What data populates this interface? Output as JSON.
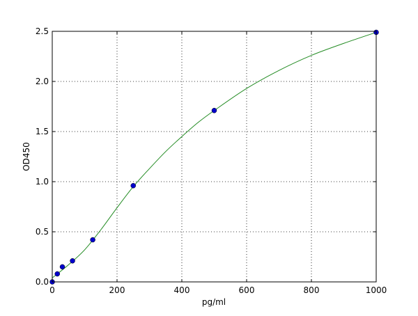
{
  "chart_data": {
    "type": "scatter",
    "title": "",
    "xlabel": "pg/ml",
    "ylabel": "OD450",
    "xlim": [
      0,
      1000
    ],
    "ylim": [
      0,
      2.5
    ],
    "xticks": [
      "0",
      "200",
      "400",
      "600",
      "800",
      "1000"
    ],
    "yticks": [
      "0.0",
      "0.5",
      "1.0",
      "1.5",
      "2.0",
      "2.5"
    ],
    "grid": true,
    "grid_style": "dotted",
    "series": [
      {
        "kind": "points",
        "color": "#0000cc",
        "x": [
          0,
          15.6,
          31.25,
          62.5,
          125,
          250,
          500,
          1000
        ],
        "y": [
          0.0,
          0.08,
          0.15,
          0.21,
          0.42,
          0.96,
          1.71,
          2.49
        ]
      },
      {
        "kind": "fit-line",
        "color": "#228b22",
        "x": [
          0,
          50,
          100,
          150,
          200,
          250,
          300,
          350,
          400,
          450,
          500,
          600,
          700,
          800,
          900,
          1000
        ],
        "y": [
          0.04,
          0.17,
          0.32,
          0.52,
          0.74,
          0.95,
          1.13,
          1.3,
          1.45,
          1.59,
          1.71,
          1.93,
          2.11,
          2.26,
          2.38,
          2.49
        ]
      }
    ]
  }
}
